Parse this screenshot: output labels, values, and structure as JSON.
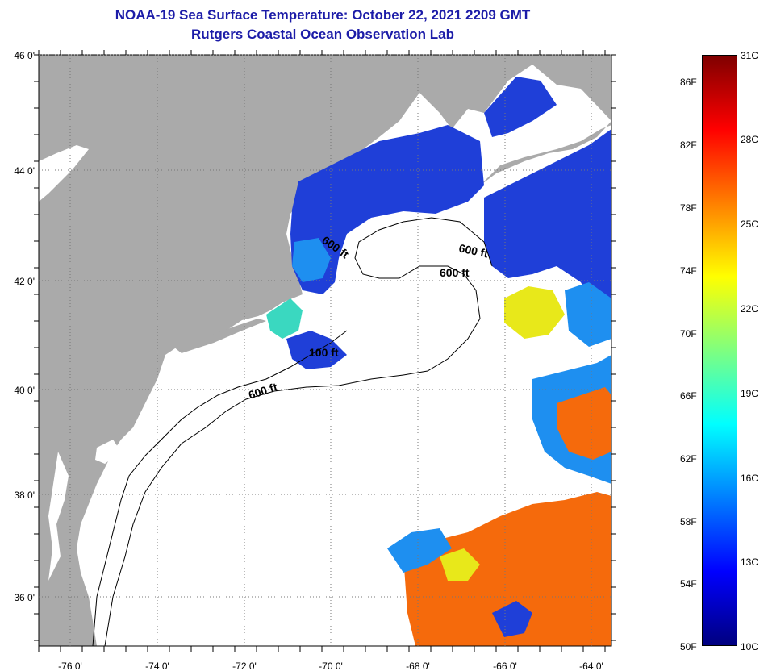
{
  "title": {
    "line1": "NOAA-19 Sea Surface Temperature:  October 22, 2021 2209 GMT",
    "line2": "Rutgers Coastal Ocean Observation Lab"
  },
  "map": {
    "lon_labels": [
      "-76 0'",
      "-74 0'",
      "-72 0'",
      "-70 0'",
      "-68 0'",
      "-66 0'",
      "-64 0'"
    ],
    "lat_labels": [
      "46 0'",
      "44 0'",
      "42 0'",
      "40 0'",
      "38 0'",
      "36 0'"
    ],
    "contour_labels": [
      "600 ft",
      "600 ft",
      "600 ft",
      "100 ft",
      "600 ft"
    ],
    "colors": {
      "land": "#aaaaaa",
      "cloud": "#ffffff",
      "cold": "#1f3fd8",
      "cool": "#1e8ff0",
      "mid": "#3ad8c0",
      "warm": "#e8e81a",
      "hot": "#f56a0c"
    }
  },
  "colorbar": {
    "fahrenheit": [
      "86F",
      "82F",
      "78F",
      "74F",
      "70F",
      "66F",
      "62F",
      "58F",
      "54F",
      "50F"
    ],
    "celsius": [
      "31C",
      "28C",
      "25C",
      "22C",
      "19C",
      "16C",
      "13C",
      "10C"
    ],
    "gradient_colors": [
      "#00007f",
      "#0000ff",
      "#007fff",
      "#00ffff",
      "#7fff7f",
      "#ffff00",
      "#ff7f00",
      "#ff0000",
      "#7f0000"
    ]
  }
}
